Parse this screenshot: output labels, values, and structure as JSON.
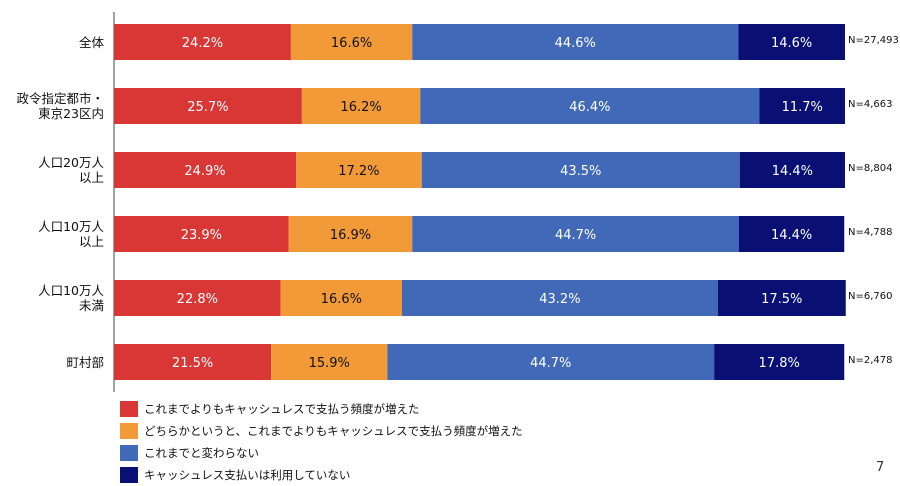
{
  "chart_data": {
    "type": "bar",
    "orientation": "horizontal",
    "stacked": true,
    "percent_stacked": true,
    "categories": [
      "全体",
      "政令指定都市・\n東京23区内",
      "人口20万人\n以上",
      "人口10万人\n以上",
      "人口10万人\n未満",
      "町村部"
    ],
    "sample_sizes": [
      "N=27,493",
      "N=4,663",
      "N=8,804",
      "N=4,788",
      "N=6,760",
      "N=2,478"
    ],
    "series": [
      {
        "name": "これまでよりもキャッシュレスで支払う頻度が増えた",
        "color": "#d93636",
        "values": [
          24.2,
          25.7,
          24.9,
          23.9,
          22.8,
          21.5
        ],
        "labels": [
          "24.2%",
          "25.7%",
          "24.9%",
          "23.9%",
          "22.8%",
          "21.5%"
        ],
        "label_color": "#ffffff"
      },
      {
        "name": "どちらかというと、これまでよりもキャッシュレスで支払う頻度が増えた",
        "color": "#f29a38",
        "values": [
          16.6,
          16.2,
          17.2,
          16.9,
          16.6,
          15.9
        ],
        "labels": [
          "16.6%",
          "16.2%",
          "17.2%",
          "16.9%",
          "16.6%",
          "15.9%"
        ],
        "label_color": "#111111"
      },
      {
        "name": "これまでと変わらない",
        "color": "#4169b8",
        "values": [
          44.6,
          46.4,
          43.5,
          44.7,
          43.2,
          44.7
        ],
        "labels": [
          "44.6%",
          "46.4%",
          "43.5%",
          "44.7%",
          "43.2%",
          "44.7%"
        ],
        "label_color": "#ffffff"
      },
      {
        "name": "キャッシュレス支払いは利用していない",
        "color": "#0a0f73",
        "values": [
          14.6,
          11.7,
          14.4,
          14.4,
          17.5,
          17.8
        ],
        "labels": [
          "14.6%",
          "11.7%",
          "14.4%",
          "14.4%",
          "17.5%",
          "17.8%"
        ],
        "label_color": "#ffffff"
      }
    ],
    "xlim": [
      0,
      100
    ],
    "grid": false,
    "legend_position": "bottom-left"
  },
  "page_number": "7"
}
